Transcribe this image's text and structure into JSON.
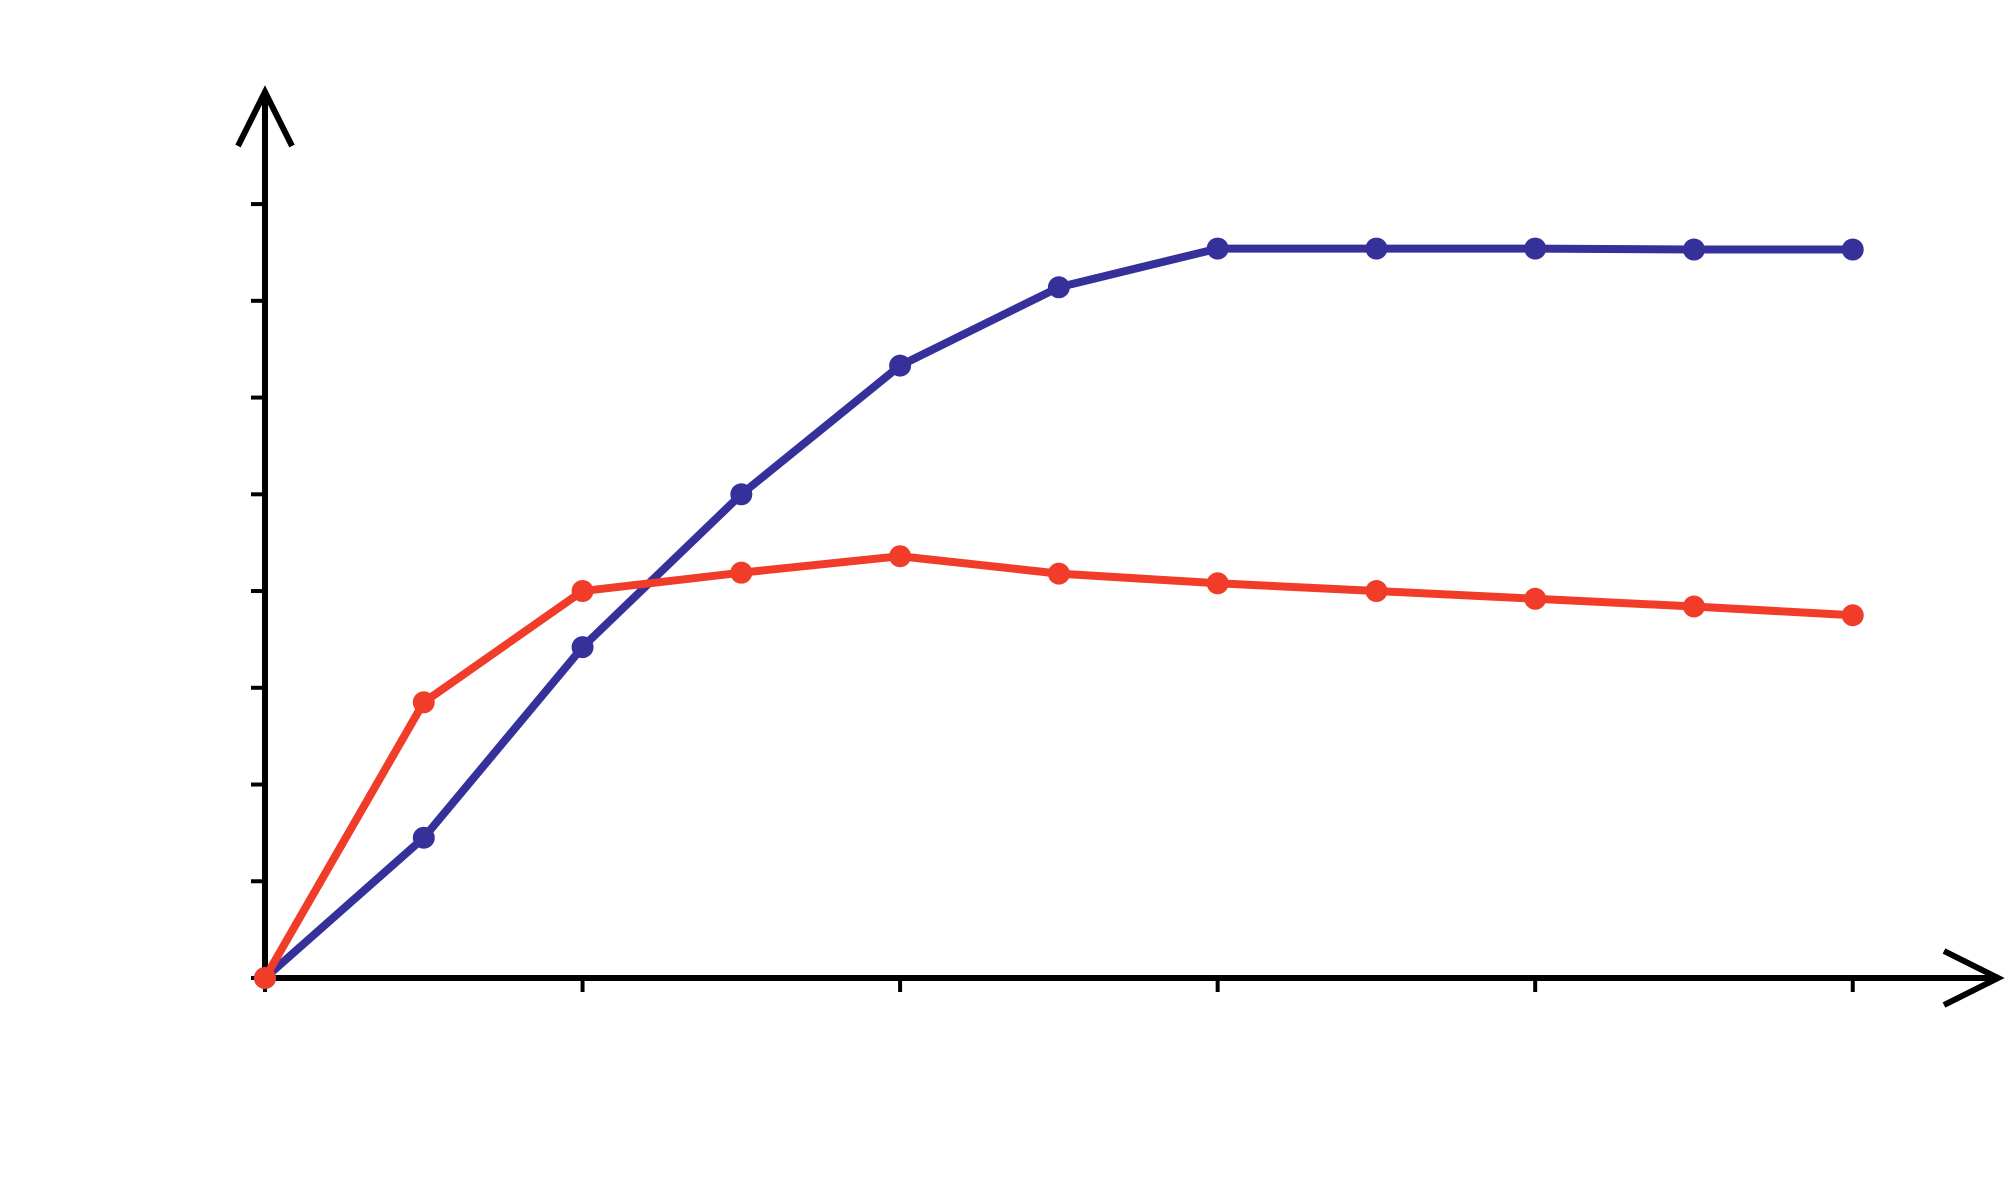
{
  "chart_data": {
    "type": "line",
    "x": [
      0,
      0.5,
      1,
      1.5,
      2,
      2.5,
      3,
      3.5,
      4,
      4.5,
      5
    ],
    "series": [
      {
        "color": "#35309a",
        "values": [
          0,
          1.45,
          3.42,
          5.0,
          6.33,
          7.14,
          7.54,
          7.54,
          7.54,
          7.53,
          7.53
        ]
      },
      {
        "color": "#f03c28",
        "values": [
          0,
          2.85,
          4.0,
          4.19,
          4.36,
          4.18,
          4.08,
          4.0,
          3.92,
          3.84,
          3.75
        ]
      }
    ],
    "xlim": [
      0,
      5.47
    ],
    "ylim": [
      0,
      9.2
    ],
    "xticks": [
      0,
      1,
      2,
      3,
      4,
      5
    ],
    "yticks": [
      0,
      1,
      2,
      3,
      4,
      5,
      6,
      7,
      8
    ]
  }
}
